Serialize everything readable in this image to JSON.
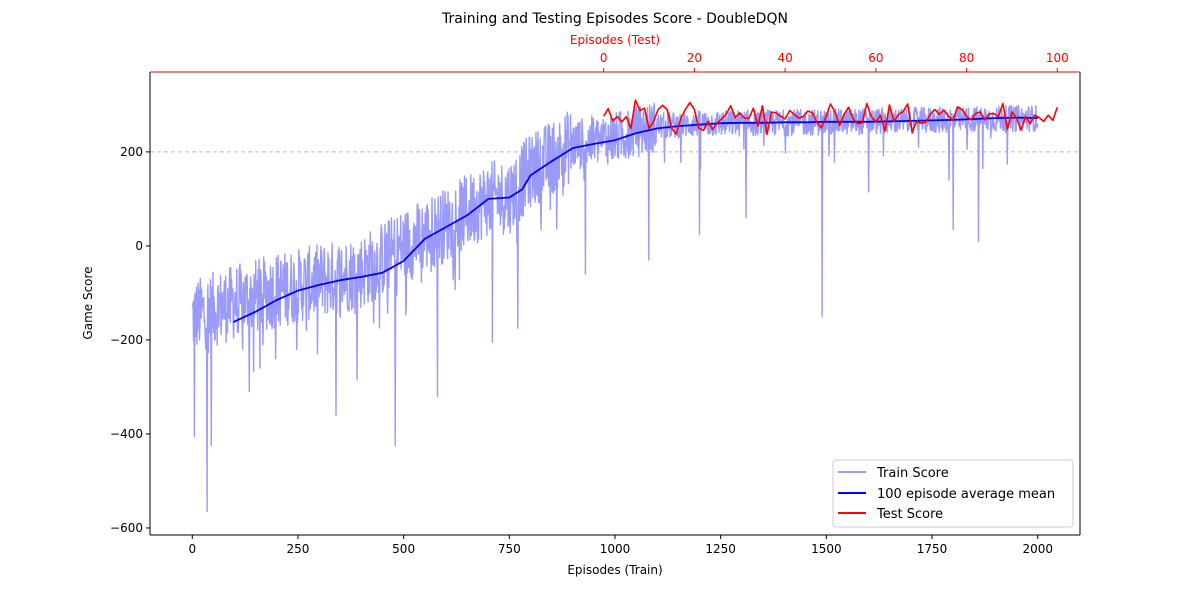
{
  "chart_data": {
    "type": "line",
    "title": "Training and Testing Episodes Score - DoubleDQN",
    "xlabel": "Episodes (Train)",
    "ylabel": "Game Score",
    "x2label": "Episodes (Test)",
    "xlim": [
      -100,
      2100
    ],
    "x2lim": [
      -100,
      105
    ],
    "ylim": [
      -615,
      370
    ],
    "xticks": [
      0,
      250,
      500,
      750,
      1000,
      1250,
      1500,
      1750,
      2000
    ],
    "x2ticks": [
      0,
      20,
      40,
      60,
      80,
      100
    ],
    "yticks": [
      -600,
      -400,
      -200,
      0,
      200
    ],
    "reference_line": {
      "y": 200,
      "style": "dashed",
      "color": "#bbbbbb"
    },
    "grid": false,
    "legend_position": "lower-right",
    "series": [
      {
        "name": "Train Score",
        "color": "#9a9af8",
        "axis": "bottom",
        "x_range": [
          0,
          2000
        ],
        "trend_control_points": [
          [
            0,
            -150
          ],
          [
            100,
            -120
          ],
          [
            200,
            -95
          ],
          [
            300,
            -75
          ],
          [
            400,
            -55
          ],
          [
            500,
            0
          ],
          [
            600,
            45
          ],
          [
            700,
            100
          ],
          [
            750,
            105
          ],
          [
            800,
            160
          ],
          [
            900,
            215
          ],
          [
            1000,
            230
          ],
          [
            1100,
            255
          ],
          [
            1200,
            260
          ],
          [
            1400,
            262
          ],
          [
            1600,
            265
          ],
          [
            1800,
            268
          ],
          [
            2000,
            272
          ]
        ],
        "notable_dips": [
          [
            5,
            -405
          ],
          [
            35,
            -565
          ],
          [
            45,
            -425
          ],
          [
            135,
            -310
          ],
          [
            160,
            -260
          ],
          [
            270,
            -180
          ],
          [
            340,
            -360
          ],
          [
            390,
            -285
          ],
          [
            480,
            -425
          ],
          [
            580,
            -320
          ],
          [
            710,
            -205
          ],
          [
            770,
            -175
          ],
          [
            930,
            -60
          ],
          [
            1080,
            -30
          ],
          [
            1200,
            25
          ],
          [
            1310,
            60
          ],
          [
            1490,
            -150
          ],
          [
            1600,
            115
          ],
          [
            1790,
            140
          ],
          [
            1800,
            35
          ],
          [
            1860,
            10
          ]
        ]
      },
      {
        "name": "100 episode average mean",
        "color": "#0000ff",
        "axis": "bottom",
        "points": [
          [
            97,
            -162
          ],
          [
            150,
            -140
          ],
          [
            200,
            -115
          ],
          [
            250,
            -95
          ],
          [
            300,
            -83
          ],
          [
            350,
            -73
          ],
          [
            400,
            -66
          ],
          [
            450,
            -57
          ],
          [
            500,
            -32
          ],
          [
            550,
            15
          ],
          [
            600,
            40
          ],
          [
            650,
            65
          ],
          [
            700,
            100
          ],
          [
            750,
            103
          ],
          [
            780,
            120
          ],
          [
            800,
            150
          ],
          [
            850,
            180
          ],
          [
            900,
            208
          ],
          [
            950,
            217
          ],
          [
            1000,
            225
          ],
          [
            1050,
            240
          ],
          [
            1100,
            250
          ],
          [
            1150,
            255
          ],
          [
            1200,
            258
          ],
          [
            1250,
            261
          ],
          [
            1300,
            262
          ],
          [
            1350,
            262
          ],
          [
            1400,
            263
          ],
          [
            1450,
            263
          ],
          [
            1500,
            264
          ],
          [
            1550,
            264
          ],
          [
            1600,
            264
          ],
          [
            1650,
            265
          ],
          [
            1700,
            266
          ],
          [
            1750,
            267
          ],
          [
            1800,
            268
          ],
          [
            1850,
            270
          ],
          [
            1900,
            272
          ],
          [
            1950,
            273
          ],
          [
            2000,
            272
          ]
        ]
      },
      {
        "name": "Test Score",
        "color": "#ff0000",
        "axis": "top",
        "x": [
          0,
          1,
          2,
          3,
          4,
          5,
          6,
          7,
          8,
          9,
          10,
          11,
          12,
          13,
          14,
          15,
          16,
          17,
          18,
          19,
          20,
          21,
          22,
          23,
          24,
          25,
          26,
          27,
          28,
          29,
          30,
          31,
          32,
          33,
          34,
          35,
          36,
          37,
          38,
          39,
          40,
          41,
          42,
          43,
          44,
          45,
          46,
          47,
          48,
          49,
          50,
          51,
          52,
          53,
          54,
          55,
          56,
          57,
          58,
          59,
          60,
          61,
          62,
          63,
          64,
          65,
          66,
          67,
          68,
          69,
          70,
          71,
          72,
          73,
          74,
          75,
          76,
          77,
          78,
          79,
          80,
          81,
          82,
          83,
          84,
          85,
          86,
          87,
          88,
          89,
          90,
          91,
          92,
          93,
          94,
          95,
          96,
          97,
          98,
          99,
          100
        ],
        "y": [
          276,
          292,
          266,
          275,
          264,
          275,
          250,
          310,
          288,
          293,
          250,
          265,
          290,
          299,
          290,
          250,
          238,
          271,
          290,
          305,
          290,
          250,
          246,
          265,
          248,
          262,
          270,
          280,
          298,
          273,
          283,
          272,
          271,
          293,
          255,
          298,
          237,
          285,
          283,
          276,
          270,
          288,
          280,
          272,
          275,
          287,
          283,
          263,
          251,
          275,
          302,
          285,
          256,
          280,
          295,
          270,
          260,
          262,
          303,
          275,
          264,
          278,
          244,
          300,
          265,
          280,
          286,
          302,
          242,
          265,
          261,
          263,
          280,
          290,
          280,
          289,
          276,
          267,
          296,
          290,
          276,
          268,
          282,
          285,
          268,
          281,
          282,
          275,
          303,
          248,
          285,
          272,
          247,
          275,
          260,
          278,
          273,
          265,
          278,
          267,
          295
        ]
      }
    ]
  }
}
